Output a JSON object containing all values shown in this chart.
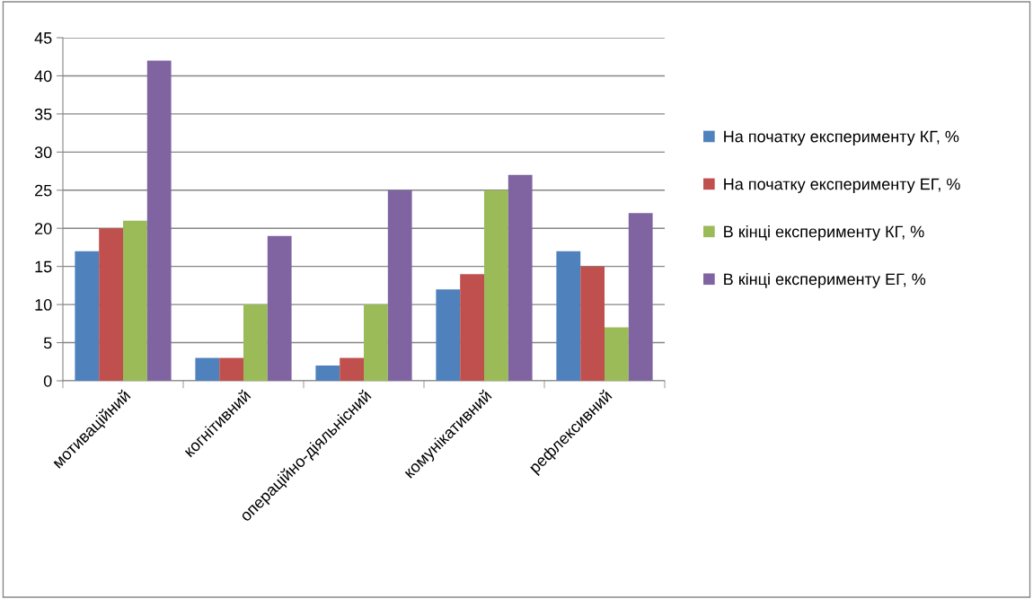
{
  "chart_data": {
    "type": "bar",
    "categories": [
      "мотиваційний",
      "когнітивний",
      "операційно-діяльнісний",
      "комунікативний",
      "рефлексивний"
    ],
    "series": [
      {
        "name": "На початку експерименту КГ, %",
        "color": "#4f81bd",
        "values": [
          17,
          3,
          2,
          12,
          17
        ]
      },
      {
        "name": "На початку експерименту ЕГ, %",
        "color": "#c0504d",
        "values": [
          20,
          3,
          3,
          14,
          15
        ]
      },
      {
        "name": "В кінці експерименту КГ, %",
        "color": "#9bbb59",
        "values": [
          21,
          10,
          10,
          25,
          7
        ]
      },
      {
        "name": "В кінці експерименту ЕГ, %",
        "color": "#8064a2",
        "values": [
          42,
          19,
          25,
          27,
          22
        ]
      }
    ],
    "ylim": [
      0,
      45
    ],
    "yticks": [
      0,
      5,
      10,
      15,
      20,
      25,
      30,
      35,
      40,
      45
    ],
    "grid": "y",
    "legend": "right"
  }
}
